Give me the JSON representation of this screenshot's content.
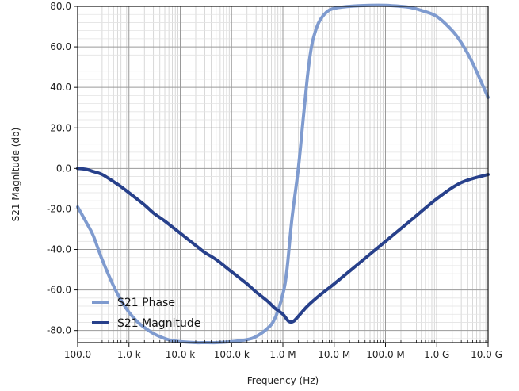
{
  "chart_data": {
    "type": "line",
    "title": "",
    "xlabel": "Frequency (Hz)",
    "ylabel": "S21 Magnitude (db)",
    "x_scale": "log",
    "xlim": [
      100,
      10000000000
    ],
    "ylim": [
      -86,
      80
    ],
    "grid": true,
    "legend_position": "bottom-left",
    "x_ticks": [
      {
        "value": 100,
        "label": "100.0"
      },
      {
        "value": 1000,
        "label": "1.0 k"
      },
      {
        "value": 10000,
        "label": "10.0 k"
      },
      {
        "value": 100000,
        "label": "100.0 k"
      },
      {
        "value": 1000000,
        "label": "1.0 M"
      },
      {
        "value": 10000000,
        "label": "10.0 M"
      },
      {
        "value": 100000000,
        "label": "100.0 M"
      },
      {
        "value": 1000000000,
        "label": "1.0 G"
      },
      {
        "value": 10000000000,
        "label": "10.0 G"
      }
    ],
    "y_ticks": [
      {
        "value": 80,
        "label": "80.0"
      },
      {
        "value": 60,
        "label": "60.0"
      },
      {
        "value": 40,
        "label": "40.0"
      },
      {
        "value": 20,
        "label": "20.0"
      },
      {
        "value": 0,
        "label": "0.0"
      },
      {
        "value": -20,
        "label": "-20.0"
      },
      {
        "value": -40,
        "label": "-40.0"
      },
      {
        "value": -60,
        "label": "-60.0"
      },
      {
        "value": -80,
        "label": "-80.0"
      }
    ],
    "series": [
      {
        "name": "S21 Phase",
        "color": "#7f9bcf",
        "x": [
          100,
          150,
          200,
          300,
          500,
          700,
          1000,
          1500,
          2000,
          3000,
          5000,
          7000,
          10000,
          20000,
          30000,
          50000,
          100000,
          200000,
          300000,
          500000,
          700000,
          1000000,
          1200000,
          1500000,
          2000000,
          2500000,
          3000000,
          3500000,
          4000000,
          5000000,
          7000000,
          10000000,
          20000000,
          50000000,
          100000000,
          200000000,
          300000000,
          500000000,
          1000000000,
          2000000000,
          3000000000,
          5000000000,
          10000000000
        ],
        "y": [
          -19,
          -27,
          -33,
          -45,
          -58,
          -65,
          -71,
          -76,
          -78.5,
          -81.5,
          -84,
          -85,
          -85.5,
          -86,
          -86,
          -86,
          -85.5,
          -84.5,
          -83,
          -79,
          -74,
          -62,
          -50,
          -25,
          0,
          25,
          45,
          58,
          65,
          72,
          77,
          79,
          80,
          80.5,
          80.5,
          80,
          79.5,
          78,
          75,
          68,
          62,
          52,
          35
        ]
      },
      {
        "name": "S21 Magnitude",
        "color": "#27408b",
        "x": [
          100,
          150,
          200,
          300,
          500,
          700,
          1000,
          2000,
          3000,
          5000,
          10000,
          20000,
          30000,
          50000,
          100000,
          200000,
          300000,
          500000,
          700000,
          1000000,
          1300000,
          1600000,
          2000000,
          3000000,
          5000000,
          10000000,
          30000000,
          100000000,
          300000000,
          1000000000,
          3000000000,
          10000000000
        ],
        "y": [
          0,
          -0.5,
          -1.5,
          -3,
          -6.5,
          -9,
          -12,
          -18,
          -22,
          -26,
          -32,
          -38,
          -41.5,
          -45,
          -51,
          -57,
          -61,
          -65.5,
          -69,
          -72,
          -75.5,
          -75.5,
          -73,
          -68,
          -63,
          -57,
          -47,
          -36,
          -26,
          -15,
          -7,
          -3
        ]
      }
    ]
  }
}
